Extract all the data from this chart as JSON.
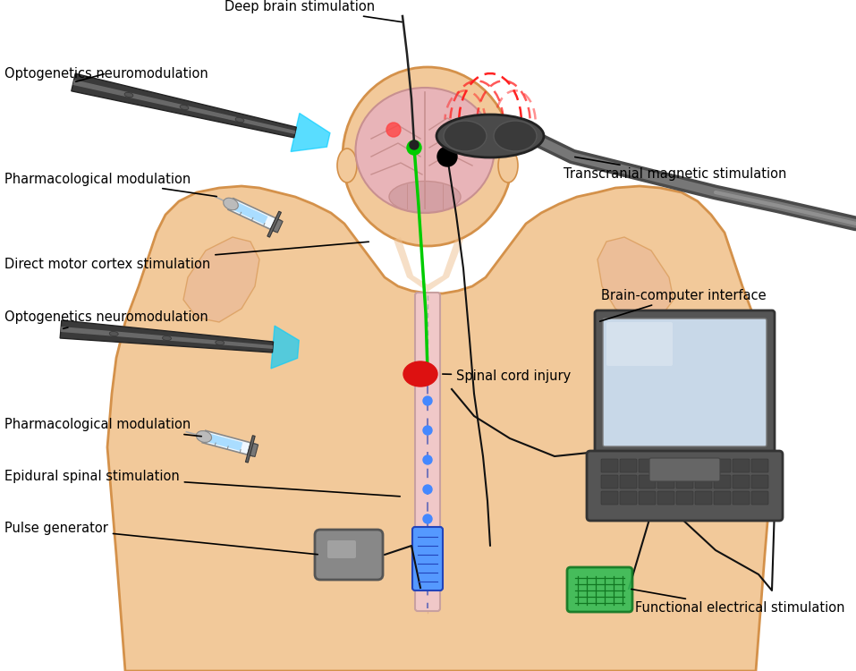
{
  "bg_color": "#ffffff",
  "body_skin_color": "#F2C99A",
  "body_outline_color": "#D4914A",
  "brain_color": "#E8B4B8",
  "brain_outline": "#C89090",
  "spine_dashed_color": "#7777BB",
  "green_line_color": "#00CC00",
  "red_injury_color": "#DD1111",
  "blue_stim_color": "#4488FF",
  "cyan_laser_color": "#00CCFF",
  "tms_field_color": "#FF2222",
  "laptop_body_color": "#5a5a5a",
  "laptop_screen_color": "#C8D8E8",
  "green_patch_color": "#33BB55",
  "pulse_gen_color": "#888888",
  "labels": {
    "deep_brain": "Deep brain stimulation",
    "optogenetics_top": "Optogenetics neuromodulation",
    "pharmacological_top": "Pharmacological modulation",
    "direct_motor": "Direct motor cortex stimulation",
    "tms": "Transcranial magnetic stimulation",
    "optogenetics_mid": "Optogenetics neuromodulation",
    "spinal_injury": "Spinal cord injury",
    "bci": "Brain-computer interface",
    "pharmacological_bot": "Pharmacological modulation",
    "epidural": "Epidural spinal stimulation",
    "pulse_gen": "Pulse generator",
    "functional_elec": "Functional electrical stimulation"
  }
}
